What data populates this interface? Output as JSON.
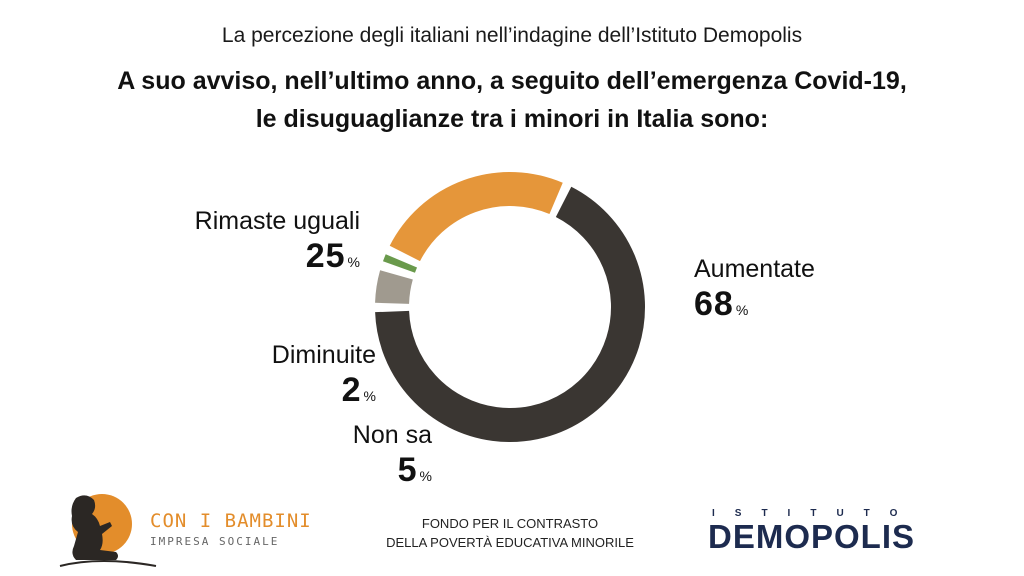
{
  "header": {
    "subtitle": "La percezione degli italiani nell’indagine dell’Istituto Demopolis",
    "question_line1": "A suo avviso, nell’ultimo anno, a seguito dell’emergenza Covid-19,",
    "question_line2": "le disuguaglianze tra i minori in Italia sono:"
  },
  "chart_data": {
    "type": "pie",
    "variant": "donut",
    "slices": [
      {
        "label": "Aumentate",
        "value": 68,
        "display": "68",
        "unit": "%",
        "color": "#3a3632"
      },
      {
        "label": "Non sa",
        "value": 5,
        "display": "5",
        "unit": "%",
        "color": "#a09a8f"
      },
      {
        "label": "Diminuite",
        "value": 2,
        "display": "2",
        "unit": "%",
        "color": "#6a9a4c"
      },
      {
        "label": "Rimaste uguali",
        "value": 25,
        "display": "25",
        "unit": "%",
        "color": "#e5963a"
      }
    ]
  },
  "footer": {
    "left_logo_name": "CON I BAMBINI",
    "left_logo_sub": "IMPRESA SOCIALE",
    "fund_line1": "FONDO PER IL CONTRASTO",
    "fund_line2": "DELLA POVERTÀ EDUCATIVA MINORILE",
    "right_logo_top": "ISTITUTO",
    "right_logo_name": "DEMOPOLIS",
    "left_logo_color": "#e38d2b",
    "right_logo_color": "#1d2b4f"
  }
}
